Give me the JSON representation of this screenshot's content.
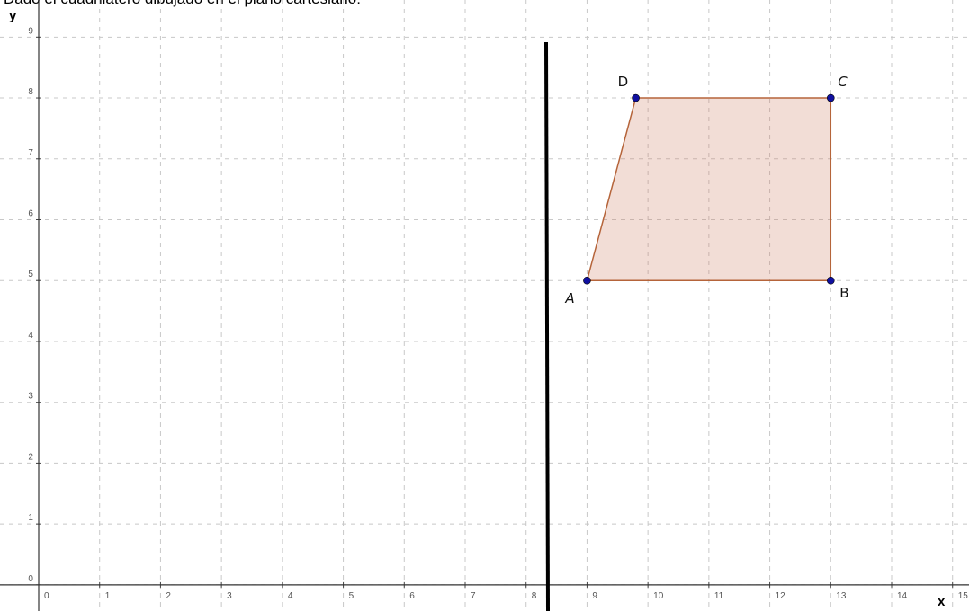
{
  "instruction": "Dado el cuadrilátero dibujado en el plano cartesiano:",
  "axes": {
    "x_label": "x",
    "y_label": "y",
    "xlim": [
      -0.635,
      15.27
    ],
    "ylim": [
      -0.43,
      9.61
    ],
    "xticks": [
      0,
      1,
      2,
      3,
      4,
      5,
      6,
      7,
      8,
      9,
      10,
      11,
      12,
      13,
      14,
      15
    ],
    "yticks": [
      0,
      1,
      2,
      3,
      4,
      5,
      6,
      7,
      8,
      9
    ],
    "grid": true
  },
  "points": [
    {
      "label": "A",
      "x": 9,
      "y": 5
    },
    {
      "label": "B",
      "x": 13,
      "y": 5
    },
    {
      "label": "C",
      "x": 13,
      "y": 8
    },
    {
      "label": "D",
      "x": 9.8,
      "y": 8
    }
  ]
}
